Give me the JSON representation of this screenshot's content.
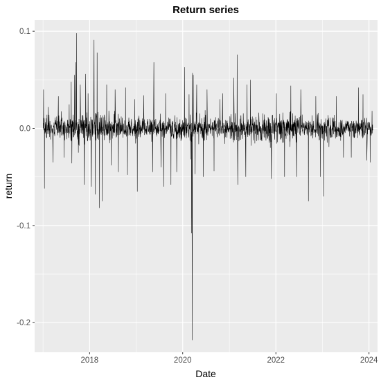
{
  "chart_data": {
    "type": "line",
    "title": "Return series",
    "xlabel": "Date",
    "ylabel": "return",
    "x_axis": {
      "kind": "date",
      "range": [
        "2016-10-27",
        "2024-03-08"
      ],
      "ticks": [
        {
          "value": "2018-01-01",
          "label": "2018"
        },
        {
          "value": "2020-01-01",
          "label": "2020"
        },
        {
          "value": "2022-01-01",
          "label": "2022"
        },
        {
          "value": "2024-01-01",
          "label": "2024"
        }
      ],
      "minor_ticks": [
        "2017-01-01",
        "2019-01-01",
        "2021-01-01",
        "2023-01-01"
      ]
    },
    "y_axis": {
      "range": [
        -0.2305,
        0.1115
      ],
      "ticks": [
        {
          "value": 0.1,
          "label": "0.1"
        },
        {
          "value": 0.0,
          "label": "0.0"
        },
        {
          "value": -0.1,
          "label": "-0.1"
        },
        {
          "value": -0.2,
          "label": "-0.2"
        }
      ],
      "minor_ticks": [
        0.05,
        -0.05,
        -0.15
      ]
    },
    "grid": true,
    "panel_background": "#ebebeb",
    "series": [
      {
        "line_color": "#000000",
        "data_start": "2017-01-03",
        "data_end": "2024-01-31",
        "typical_band": [
          -0.03,
          0.03
        ],
        "points": [
          {
            "x": "2017-01-05",
            "y": 0.04
          },
          {
            "x": "2017-01-12",
            "y": -0.062
          },
          {
            "x": "2017-02-10",
            "y": 0.022
          },
          {
            "x": "2017-03-20",
            "y": -0.035
          },
          {
            "x": "2017-05-01",
            "y": 0.033
          },
          {
            "x": "2017-06-15",
            "y": -0.03
          },
          {
            "x": "2017-08-10",
            "y": 0.048
          },
          {
            "x": "2017-08-15",
            "y": -0.036
          },
          {
            "x": "2017-09-05",
            "y": 0.055
          },
          {
            "x": "2017-09-15",
            "y": 0.068
          },
          {
            "x": "2017-09-20",
            "y": 0.098
          },
          {
            "x": "2017-10-05",
            "y": -0.025
          },
          {
            "x": "2017-10-20",
            "y": 0.045
          },
          {
            "x": "2017-11-03",
            "y": 0.012
          },
          {
            "x": "2017-11-20",
            "y": -0.058
          },
          {
            "x": "2017-12-01",
            "y": 0.056
          },
          {
            "x": "2017-12-10",
            "y": -0.079
          },
          {
            "x": "2017-12-20",
            "y": 0.036
          },
          {
            "x": "2018-01-15",
            "y": -0.06
          },
          {
            "x": "2018-02-05",
            "y": 0.091
          },
          {
            "x": "2018-02-15",
            "y": -0.068
          },
          {
            "x": "2018-03-01",
            "y": 0.078
          },
          {
            "x": "2018-03-20",
            "y": -0.082
          },
          {
            "x": "2018-04-10",
            "y": -0.075
          },
          {
            "x": "2018-05-15",
            "y": 0.045
          },
          {
            "x": "2018-06-20",
            "y": -0.038
          },
          {
            "x": "2018-07-20",
            "y": 0.04
          },
          {
            "x": "2018-08-15",
            "y": -0.045
          },
          {
            "x": "2018-10-10",
            "y": 0.042
          },
          {
            "x": "2018-10-25",
            "y": -0.048
          },
          {
            "x": "2018-12-20",
            "y": 0.03
          },
          {
            "x": "2019-01-10",
            "y": -0.065
          },
          {
            "x": "2019-03-01",
            "y": 0.034
          },
          {
            "x": "2019-05-10",
            "y": -0.045
          },
          {
            "x": "2019-05-20",
            "y": 0.068
          },
          {
            "x": "2019-07-15",
            "y": -0.04
          },
          {
            "x": "2019-08-05",
            "y": -0.06
          },
          {
            "x": "2019-08-20",
            "y": 0.036
          },
          {
            "x": "2019-10-01",
            "y": -0.058
          },
          {
            "x": "2019-10-20",
            "y": 0.055
          },
          {
            "x": "2019-11-15",
            "y": -0.045
          },
          {
            "x": "2020-01-15",
            "y": 0.063
          },
          {
            "x": "2020-02-20",
            "y": 0.035
          },
          {
            "x": "2020-03-05",
            "y": -0.032
          },
          {
            "x": "2020-03-11",
            "y": -0.108
          },
          {
            "x": "2020-03-16",
            "y": -0.218
          },
          {
            "x": "2020-03-18",
            "y": 0.057
          },
          {
            "x": "2020-03-24",
            "y": 0.055
          },
          {
            "x": "2020-04-08",
            "y": -0.047
          },
          {
            "x": "2020-04-20",
            "y": 0.045
          },
          {
            "x": "2020-06-11",
            "y": -0.05
          },
          {
            "x": "2020-07-10",
            "y": 0.04
          },
          {
            "x": "2020-09-03",
            "y": -0.044
          },
          {
            "x": "2020-10-20",
            "y": 0.03
          },
          {
            "x": "2020-11-09",
            "y": 0.036
          },
          {
            "x": "2021-01-10",
            "y": -0.06
          },
          {
            "x": "2021-02-05",
            "y": 0.052
          },
          {
            "x": "2021-03-03",
            "y": 0.076
          },
          {
            "x": "2021-03-08",
            "y": -0.058
          },
          {
            "x": "2021-05-10",
            "y": -0.05
          },
          {
            "x": "2021-05-20",
            "y": 0.045
          },
          {
            "x": "2021-06-15",
            "y": 0.05
          },
          {
            "x": "2021-07-10",
            "y": -0.068
          },
          {
            "x": "2021-09-05",
            "y": -0.055
          },
          {
            "x": "2021-10-10",
            "y": 0.041
          },
          {
            "x": "2021-11-26",
            "y": -0.052
          },
          {
            "x": "2022-01-05",
            "y": 0.036
          },
          {
            "x": "2022-03-10",
            "y": -0.05
          },
          {
            "x": "2022-04-10",
            "y": 0.035
          },
          {
            "x": "2022-04-28",
            "y": 0.044
          },
          {
            "x": "2022-05-15",
            "y": -0.055
          },
          {
            "x": "2022-06-13",
            "y": -0.05
          },
          {
            "x": "2022-07-15",
            "y": 0.04
          },
          {
            "x": "2022-09-13",
            "y": -0.075
          },
          {
            "x": "2022-11-10",
            "y": 0.033
          },
          {
            "x": "2022-12-15",
            "y": -0.05
          },
          {
            "x": "2023-01-10",
            "y": -0.07
          },
          {
            "x": "2023-04-20",
            "y": 0.033
          },
          {
            "x": "2023-06-15",
            "y": -0.03
          },
          {
            "x": "2023-08-15",
            "y": -0.03
          },
          {
            "x": "2023-10-10",
            "y": 0.042
          },
          {
            "x": "2023-11-15",
            "y": 0.035
          },
          {
            "x": "2023-12-15",
            "y": -0.033
          },
          {
            "x": "2024-01-10",
            "y": -0.035
          },
          {
            "x": "2024-01-25",
            "y": 0.018
          }
        ]
      }
    ]
  }
}
